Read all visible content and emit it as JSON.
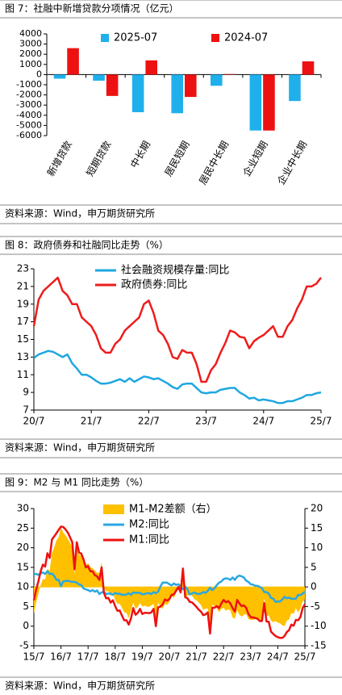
{
  "chart_data": [
    {
      "type": "bar",
      "title": "图 7：社融中新增贷款分项情况（亿元）",
      "source": "资料来源：Wind，申万期货研究所",
      "categories": [
        "新增贷款",
        "短期贷款",
        "中长期",
        "居民短期",
        "居民中长期",
        "企业短期",
        "企业中长期"
      ],
      "series": [
        {
          "name": "2025-07",
          "color": "#1fb0ec",
          "values": [
            -400,
            -600,
            -3700,
            -3800,
            -1100,
            -5500,
            -2600
          ]
        },
        {
          "name": "2024-07",
          "color": "#ee1111",
          "values": [
            2600,
            -2100,
            1400,
            -2200,
            50,
            -5500,
            1300
          ]
        }
      ],
      "ylim": [
        -6000,
        4000
      ],
      "yticks": [
        -6000,
        -5000,
        -4000,
        -3000,
        -2000,
        -1000,
        0,
        1000,
        2000,
        3000,
        4000
      ]
    },
    {
      "type": "line",
      "title": "图 8：政府债券和社融同比走势（%）",
      "source": "资料来源：Wind，申万期货研究所",
      "categories": [
        "20/7",
        null,
        null,
        null,
        null,
        null,
        null,
        null,
        null,
        null,
        null,
        null,
        "21/7",
        null,
        null,
        null,
        null,
        null,
        null,
        null,
        null,
        null,
        null,
        null,
        "22/7",
        null,
        null,
        null,
        null,
        null,
        null,
        null,
        null,
        null,
        null,
        null,
        "23/7",
        null,
        null,
        null,
        null,
        null,
        null,
        null,
        null,
        null,
        null,
        null,
        "24/7",
        null,
        null,
        null,
        null,
        null,
        null,
        null,
        null,
        null,
        null,
        null,
        "25/7"
      ],
      "series": [
        {
          "name": "社会融资规模存量:同比",
          "color": "#1ea7e1",
          "values": [
            12.9,
            13.3,
            13.5,
            13.7,
            13.6,
            13.3,
            13.0,
            13.3,
            12.3,
            11.7,
            11.0,
            11.0,
            10.7,
            10.3,
            10.0,
            10.0,
            10.1,
            10.3,
            10.5,
            10.2,
            10.6,
            10.2,
            10.5,
            10.8,
            10.7,
            10.5,
            10.6,
            10.3,
            10.0,
            9.6,
            9.4,
            9.9,
            10.0,
            10.0,
            9.5,
            9.0,
            8.9,
            9.0,
            9.0,
            9.3,
            9.4,
            9.5,
            9.5,
            9.0,
            8.7,
            8.3,
            8.4,
            8.1,
            8.2,
            8.1,
            8.0,
            7.8,
            7.8,
            8.0,
            8.0,
            8.2,
            8.4,
            8.7,
            8.7,
            8.9,
            9.0
          ]
        },
        {
          "name": "政府债券:同比",
          "color": "#ee1c1c",
          "values": [
            16.5,
            19.5,
            20.5,
            21.0,
            21.5,
            22.0,
            20.5,
            20.0,
            19.0,
            19.0,
            17.5,
            17.0,
            16.5,
            15.5,
            14.0,
            13.5,
            13.5,
            14.5,
            15.0,
            16.0,
            16.5,
            17.0,
            17.5,
            19.0,
            19.4,
            18.0,
            16.0,
            15.5,
            14.5,
            13.0,
            12.8,
            13.8,
            13.5,
            13.5,
            12.2,
            10.2,
            10.2,
            11.5,
            12.2,
            13.5,
            14.6,
            16.0,
            15.8,
            15.3,
            15.2,
            14.0,
            14.8,
            15.2,
            15.5,
            16.0,
            16.5,
            15.3,
            15.3,
            16.5,
            17.2,
            18.5,
            19.5,
            21.0,
            21.0,
            21.3,
            22.0
          ]
        }
      ],
      "ylim": [
        7,
        23
      ],
      "yticks": [
        7,
        9,
        11,
        13,
        15,
        17,
        19,
        21,
        23
      ]
    },
    {
      "type": "line",
      "title": "图 9：M2 与 M1 同比走势（%）",
      "source": "资料来源：Wind，申万期货研究所",
      "categories": [
        "15/7",
        null,
        null,
        null,
        null,
        null,
        null,
        null,
        null,
        null,
        null,
        null,
        "16/7",
        null,
        null,
        null,
        null,
        null,
        null,
        null,
        null,
        null,
        null,
        null,
        "17/7",
        null,
        null,
        null,
        null,
        null,
        null,
        null,
        null,
        null,
        null,
        null,
        "18/7",
        null,
        null,
        null,
        null,
        null,
        null,
        null,
        null,
        null,
        null,
        null,
        "19/7",
        null,
        null,
        null,
        null,
        null,
        null,
        null,
        null,
        null,
        null,
        null,
        "20/7",
        null,
        null,
        null,
        null,
        null,
        null,
        null,
        null,
        null,
        null,
        null,
        "21/7",
        null,
        null,
        null,
        null,
        null,
        null,
        null,
        null,
        null,
        null,
        null,
        "22/7",
        null,
        null,
        null,
        null,
        null,
        null,
        null,
        null,
        null,
        null,
        null,
        "23/7",
        null,
        null,
        null,
        null,
        null,
        null,
        null,
        null,
        null,
        null,
        null,
        "24/7",
        null,
        null,
        null,
        null,
        null,
        null,
        null,
        null,
        null,
        null,
        null,
        "25/7"
      ],
      "series": [
        {
          "name": "M1-M2差额（右）",
          "type": "area",
          "axis": "y2",
          "color": "#ffc000",
          "values": [
            -6.7,
            -4.0,
            -1.7,
            0.5,
            2.0,
            1.9,
            4.6,
            4.1,
            8.7,
            10.1,
            11.9,
            12.8,
            15.2,
            13.9,
            13.2,
            12.3,
            11.3,
            10.1,
            3.2,
            10.3,
            8.2,
            8.0,
            7.4,
            5.6,
            6.1,
            5.1,
            4.8,
            4.2,
            3.6,
            3.6,
            6.4,
            -0.3,
            -1.1,
            -1.1,
            -2.3,
            -1.4,
            -3.4,
            -4.3,
            -4.3,
            -5.3,
            -6.5,
            -6.6,
            -8.0,
            -6.0,
            -4.0,
            -5.6,
            -5.1,
            -4.1,
            -5.0,
            -4.8,
            -5.0,
            -5.1,
            -4.7,
            -4.3,
            -8.4,
            -4.0,
            -5.1,
            -5.6,
            -4.3,
            -4.6,
            -3.8,
            -2.4,
            -2.8,
            -1.4,
            -0.7,
            -1.5,
            5.3,
            -2.7,
            -2.3,
            -1.9,
            -2.2,
            -3.1,
            -3.4,
            -4.0,
            -4.6,
            -5.9,
            -5.5,
            -5.5,
            -11.7,
            -4.5,
            -5.0,
            -5.4,
            -6.5,
            -5.6,
            -5.3,
            -6.1,
            -5.7,
            -6.0,
            -7.8,
            -8.1,
            -5.9,
            -7.1,
            -7.6,
            -7.1,
            -6.9,
            -8.2,
            -8.4,
            -8.4,
            -8.2,
            -8.4,
            -8.7,
            -8.4,
            -2.8,
            -7.5,
            -7.2,
            -8.6,
            -9.0,
            -8.7,
            -9.1,
            -9.3,
            -9.8,
            -10.0,
            -8.6,
            -8.3,
            -6.6,
            -6.9,
            -5.4,
            -6.5,
            -5.6,
            -3.7,
            -3.2
          ]
        },
        {
          "name": "M2:同比",
          "color": "#2aa8e0",
          "values": [
            13.3,
            13.3,
            13.1,
            13.5,
            13.7,
            13.3,
            14.0,
            13.3,
            13.4,
            12.8,
            11.8,
            11.8,
            10.2,
            11.4,
            11.5,
            11.6,
            11.4,
            11.3,
            11.3,
            11.1,
            10.6,
            10.5,
            9.6,
            9.4,
            9.2,
            8.9,
            9.2,
            8.8,
            9.1,
            8.2,
            8.6,
            8.8,
            8.2,
            8.3,
            8.3,
            8.0,
            8.5,
            8.2,
            8.3,
            8.0,
            8.0,
            8.1,
            8.4,
            8.0,
            8.6,
            8.5,
            8.5,
            8.5,
            8.1,
            8.2,
            8.4,
            8.4,
            8.2,
            8.7,
            8.4,
            8.8,
            10.1,
            11.1,
            11.1,
            11.1,
            10.7,
            10.4,
            10.9,
            10.5,
            10.7,
            10.1,
            9.4,
            10.1,
            9.4,
            8.1,
            8.3,
            8.6,
            8.3,
            8.2,
            8.3,
            8.7,
            8.5,
            9.0,
            9.8,
            9.2,
            9.7,
            10.5,
            11.1,
            11.4,
            12.0,
            12.2,
            12.1,
            11.8,
            12.4,
            11.8,
            12.6,
            12.9,
            12.7,
            12.4,
            11.6,
            11.3,
            10.7,
            10.6,
            10.3,
            10.3,
            10.0,
            9.7,
            8.7,
            8.7,
            8.3,
            7.2,
            7.0,
            6.2,
            6.3,
            6.3,
            6.8,
            7.5,
            7.1,
            7.3,
            7.0,
            7.0,
            7.0,
            8.0,
            7.9,
            8.3,
            8.8
          ]
        },
        {
          "name": "M1:同比",
          "color": "#ee1111",
          "values": [
            6.6,
            9.3,
            11.4,
            14.0,
            15.7,
            15.2,
            18.6,
            17.4,
            22.1,
            22.9,
            23.7,
            24.6,
            25.4,
            25.3,
            24.7,
            23.9,
            22.7,
            21.4,
            14.5,
            21.4,
            18.8,
            18.5,
            17.0,
            15.0,
            15.3,
            14.0,
            14.0,
            13.0,
            12.7,
            11.8,
            15.0,
            8.5,
            7.1,
            7.2,
            6.0,
            6.6,
            5.1,
            3.9,
            4.0,
            2.7,
            1.5,
            1.5,
            0.4,
            2.0,
            4.6,
            2.9,
            3.4,
            4.4,
            3.1,
            3.4,
            3.4,
            3.3,
            3.5,
            4.4,
            0.0,
            4.8,
            5.0,
            5.5,
            6.8,
            6.5,
            6.9,
            8.0,
            8.1,
            9.1,
            10.0,
            8.6,
            14.7,
            7.4,
            7.1,
            6.2,
            6.1,
            5.5,
            4.9,
            4.2,
            3.7,
            2.8,
            3.0,
            3.5,
            -1.9,
            4.7,
            4.7,
            5.1,
            4.6,
            5.8,
            6.7,
            6.1,
            6.4,
            5.8,
            4.6,
            3.7,
            6.7,
            5.8,
            5.1,
            5.3,
            4.7,
            3.1,
            2.3,
            2.2,
            2.1,
            1.9,
            1.3,
            1.3,
            5.9,
            1.2,
            1.1,
            -1.4,
            -2.0,
            -2.5,
            -2.8,
            -3.0,
            -3.0,
            -2.5,
            -1.5,
            -1.0,
            0.4,
            0.1,
            1.6,
            1.5,
            2.3,
            4.6,
            5.6
          ]
        }
      ],
      "ylim": [
        -5,
        30
      ],
      "yticks": [
        -5,
        0,
        5,
        10,
        15,
        20,
        25,
        30
      ],
      "y2lim": [
        -15,
        20
      ],
      "y2ticks": [
        -15,
        -10,
        -5,
        0,
        5,
        10,
        15,
        20
      ]
    }
  ]
}
